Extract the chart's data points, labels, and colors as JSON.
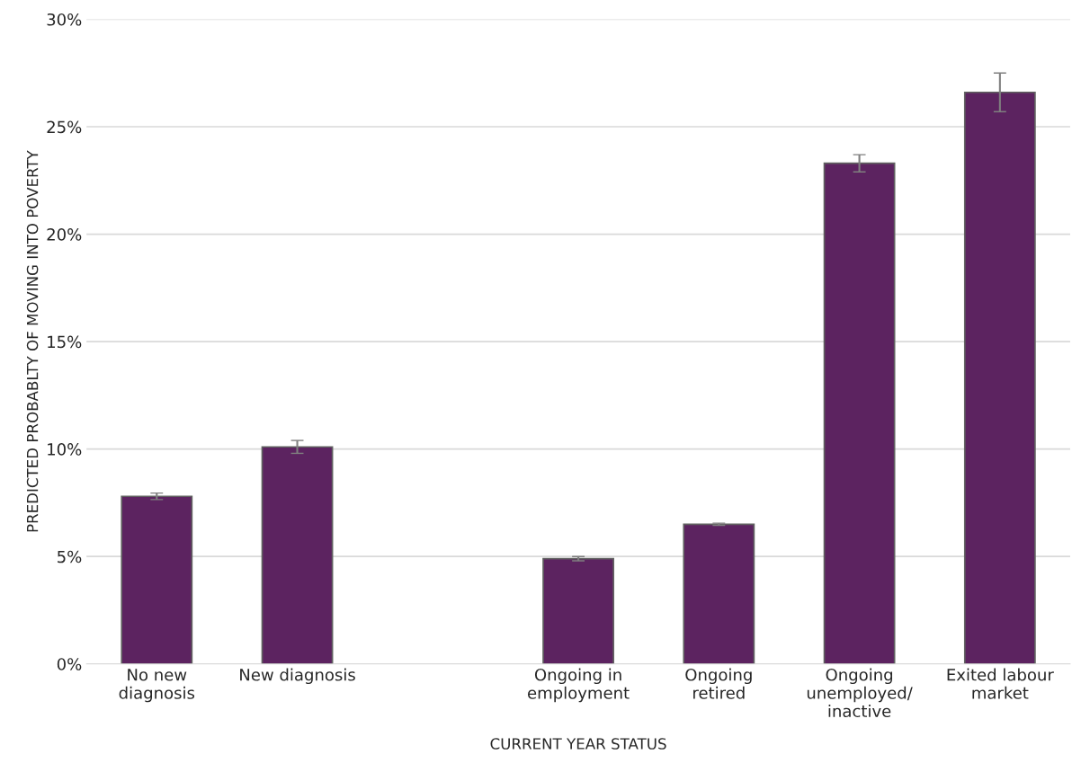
{
  "chart_data": {
    "type": "bar",
    "xlabel": "CURRENT YEAR STATUS",
    "ylabel": "PREDICTED PROBABLTY OF MOVING INTO POVERTY",
    "categories": [
      "No new\ndiagnosis",
      "New diagnosis",
      null,
      "Ongoing in\nemployment",
      "Ongoing\nretired",
      "Ongoing\nunemployed/\ninactive",
      "Exited labour\nmarket"
    ],
    "values": [
      7.8,
      10.1,
      null,
      4.9,
      6.5,
      23.3,
      26.6
    ],
    "errors": [
      0.15,
      0.3,
      null,
      0.1,
      0.05,
      0.4,
      0.9
    ],
    "color": "#5c2360",
    "ylim": [
      0,
      30
    ],
    "yticks": [
      {
        "value": 0,
        "label": "0%"
      },
      {
        "value": 5,
        "label": "5%"
      },
      {
        "value": 10,
        "label": "10%"
      },
      {
        "value": 15,
        "label": "15%"
      },
      {
        "value": 20,
        "label": "20%"
      },
      {
        "value": 25,
        "label": "25%"
      },
      {
        "value": 30,
        "label": "30%"
      }
    ],
    "grid": "y",
    "legend": false
  }
}
